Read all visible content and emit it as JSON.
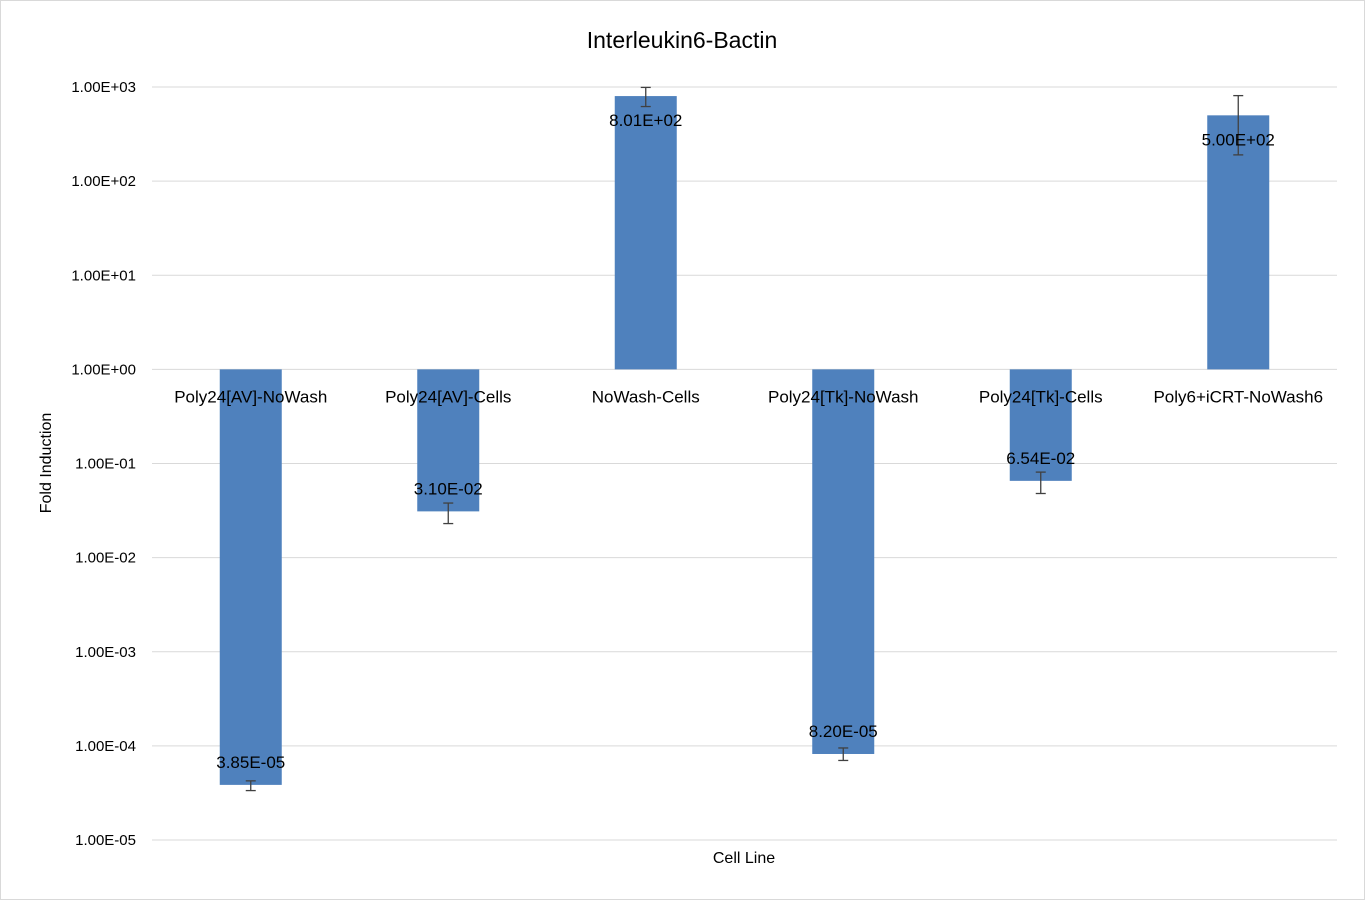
{
  "chart_data": {
    "type": "bar",
    "title": "Interleukin6-Bactin",
    "xlabel": "Cell Line",
    "ylabel": "Fold Induction",
    "yscale": "log",
    "ylim": [
      1e-05,
      1000
    ],
    "baseline": 1,
    "grid": true,
    "legend": "none",
    "bar_color": "#4f81bd",
    "y_ticks": [
      "1.00E+03",
      "1.00E+02",
      "1.00E+01",
      "1.00E+00",
      "1.00E-01",
      "1.00E-02",
      "1.00E-03",
      "1.00E-04",
      "1.00E-05"
    ],
    "y_tick_values": [
      1000,
      100,
      10,
      1,
      0.1,
      0.01,
      0.001,
      0.0001,
      1e-05
    ],
    "categories": [
      "Poly24[AV]-NoWash",
      "Poly24[AV]-Cells",
      "NoWash-Cells",
      "Poly24[Tk]-NoWash",
      "Poly24[Tk]-Cells",
      "Poly6+iCRT-NoWash6"
    ],
    "values": [
      3.85e-05,
      0.031,
      801,
      8.2e-05,
      0.0654,
      500
    ],
    "data_labels": [
      "3.85E-05",
      "3.10E-02",
      "8.01E+02",
      "8.20E-05",
      "6.54E-02",
      "5.00E+02"
    ],
    "error_low": [
      3.35e-05,
      0.023,
      620,
      7e-05,
      0.048,
      190
    ],
    "error_high": [
      4.25e-05,
      0.038,
      990,
      9.5e-05,
      0.081,
      810
    ]
  }
}
